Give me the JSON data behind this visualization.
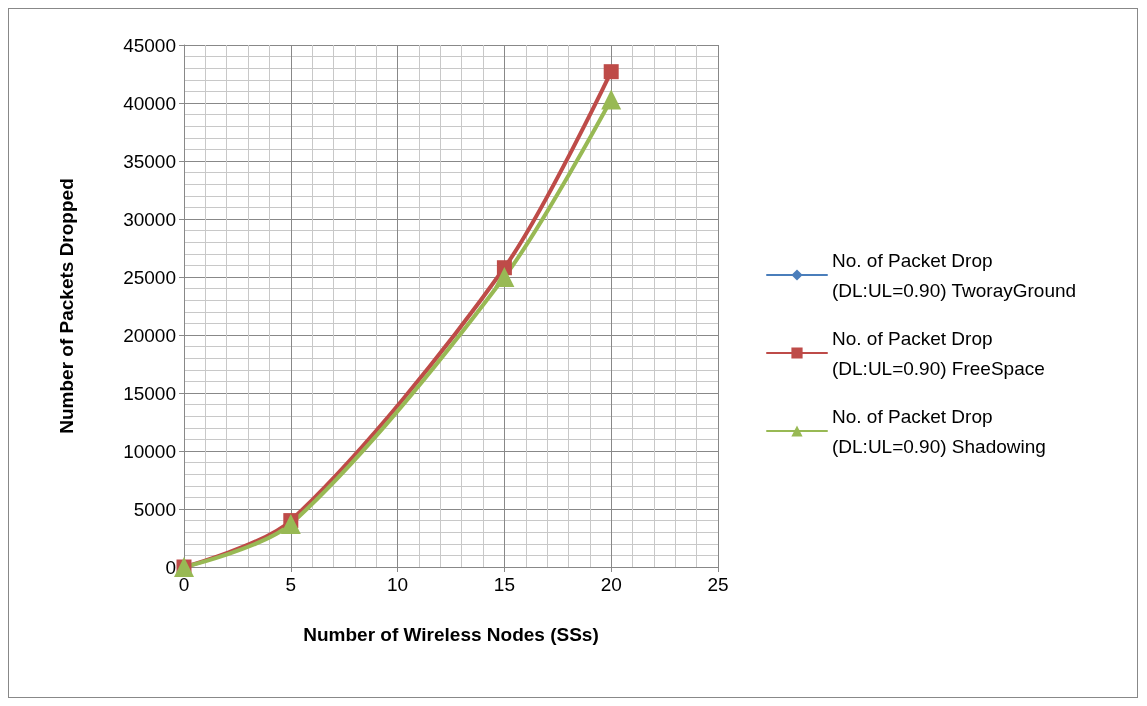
{
  "chart_data": {
    "type": "line",
    "xlabel": "Number of Wireless Nodes (SSs)",
    "ylabel": "Number of Packets Dropped",
    "x": [
      0,
      5,
      15,
      20
    ],
    "series": [
      {
        "name": "No. of Packet Drop (DL:UL=0.90) TworayGround",
        "color": "#4a7ebb",
        "marker": "diamond",
        "values": [
          null,
          null,
          null,
          null
        ]
      },
      {
        "name": "No. of Packet Drop (DL:UL=0.90) FreeSpace",
        "color": "#be4b48",
        "marker": "square",
        "values": [
          0,
          4000,
          25800,
          42700
        ]
      },
      {
        "name": "No. of Packet Drop (DL:UL=0.90) Shadowing",
        "color": "#98b954",
        "marker": "triangle",
        "values": [
          0,
          3700,
          25000,
          40300
        ]
      }
    ],
    "xlim": [
      0,
      25
    ],
    "xticks": [
      0,
      5,
      10,
      15,
      20,
      25
    ],
    "ylim": [
      0,
      45000
    ],
    "yticks": [
      0,
      5000,
      10000,
      15000,
      20000,
      25000,
      30000,
      35000,
      40000,
      45000
    ],
    "grid": true,
    "legend": "right",
    "line_style": "solid"
  }
}
